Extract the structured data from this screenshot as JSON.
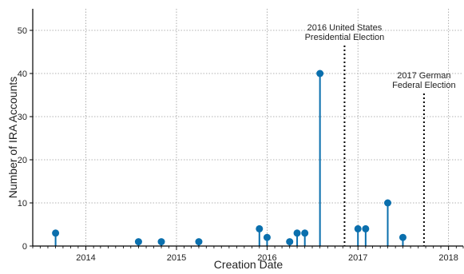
{
  "chart_data": {
    "type": "stem",
    "xlabel": "Creation Date",
    "ylabel": "Number of IRA Accounts",
    "xlim": [
      "2013-06-01",
      "2018-03-01"
    ],
    "ylim": [
      0,
      55
    ],
    "grid": true,
    "x_tick_labels": [
      "2014",
      "2015",
      "2016",
      "2017",
      "2018"
    ],
    "y_tick_labels": [
      "0",
      "10",
      "20",
      "30",
      "40",
      "50"
    ],
    "y_ticks": [
      0,
      10,
      20,
      30,
      40,
      50
    ],
    "series_color": "#0a6fad",
    "points": [
      {
        "x": "2013-09-01",
        "y": 3
      },
      {
        "x": "2014-08-01",
        "y": 1
      },
      {
        "x": "2014-11-01",
        "y": 1
      },
      {
        "x": "2015-04-01",
        "y": 1
      },
      {
        "x": "2015-12-01",
        "y": 4
      },
      {
        "x": "2016-01-01",
        "y": 2
      },
      {
        "x": "2016-04-01",
        "y": 1
      },
      {
        "x": "2016-05-01",
        "y": 3
      },
      {
        "x": "2016-06-01",
        "y": 3
      },
      {
        "x": "2016-08-01",
        "y": 40
      },
      {
        "x": "2017-01-01",
        "y": 4
      },
      {
        "x": "2017-02-01",
        "y": 4
      },
      {
        "x": "2017-05-01",
        "y": 10
      },
      {
        "x": "2017-07-01",
        "y": 2
      }
    ],
    "annotations": [
      {
        "date": "2016-11-08",
        "line1": "2016 United States",
        "line2": "Presidential Election"
      },
      {
        "date": "2017-09-24",
        "line1": "2017 German",
        "line2": "Federal Election"
      }
    ]
  }
}
